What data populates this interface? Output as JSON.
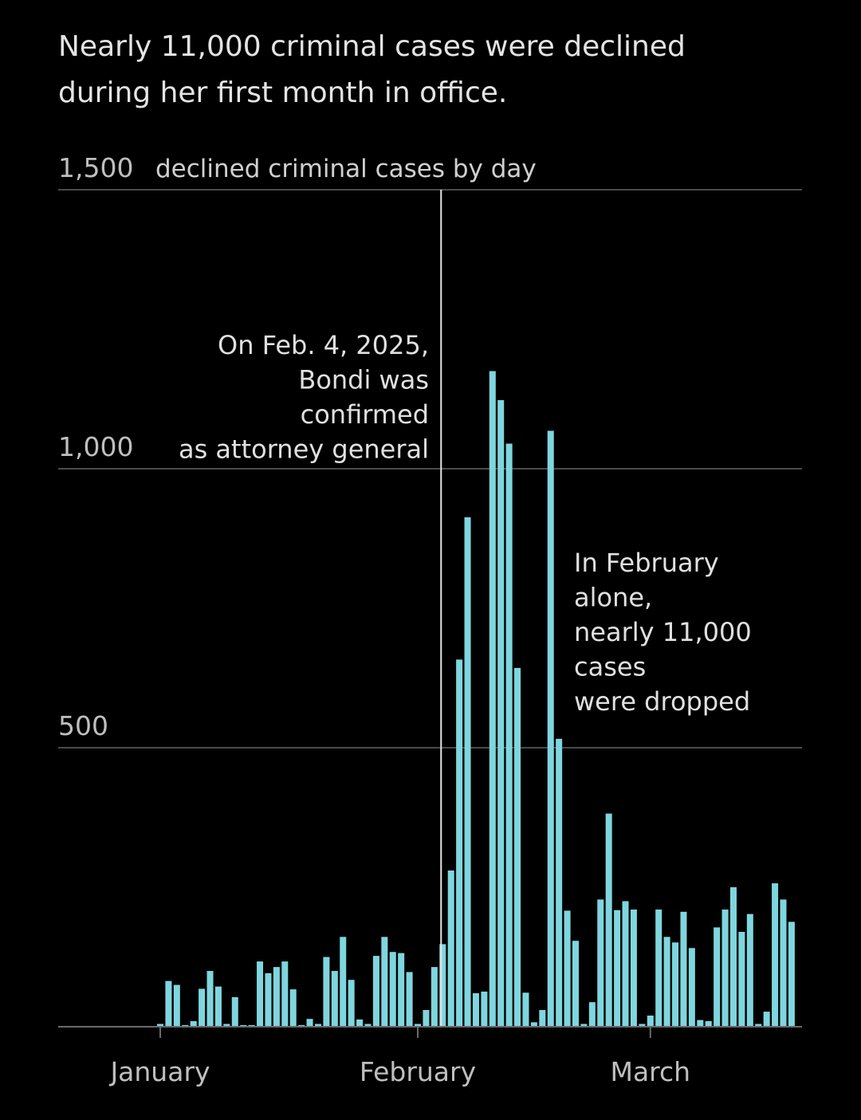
{
  "headline": "Nearly 11,000 criminal cases were declined during her first month in office.",
  "colors": {
    "bar": "#7fd6de",
    "grid": "#4a4a4a",
    "background": "#000000",
    "marker": "#e6e6e6"
  },
  "chart_data": {
    "type": "bar",
    "ylabel": "declined criminal cases by day",
    "ylim": [
      0,
      1500
    ],
    "yticks": [
      {
        "value": 500,
        "label": "500"
      },
      {
        "value": 1000,
        "label": "1,000"
      },
      {
        "value": 1500,
        "label": "1,500"
      }
    ],
    "xticks": [
      {
        "day": 1,
        "label": "January"
      },
      {
        "day": 32,
        "label": "February"
      },
      {
        "day": 60,
        "label": "March"
      }
    ],
    "values": [
      5,
      82,
      75,
      3,
      10,
      68,
      100,
      72,
      5,
      53,
      3,
      3,
      117,
      96,
      107,
      117,
      67,
      3,
      14,
      5,
      125,
      100,
      161,
      84,
      13,
      5,
      127,
      161,
      134,
      132,
      98,
      5,
      30,
      107,
      148,
      280,
      658,
      913,
      60,
      63,
      1175,
      1123,
      1045,
      643,
      61,
      8,
      30,
      1068,
      516,
      208,
      154,
      5,
      44,
      228,
      382,
      209,
      225,
      210,
      5,
      20,
      210,
      161,
      151,
      206,
      141,
      12,
      10,
      178,
      210,
      250,
      170,
      202,
      5,
      27,
      257,
      228,
      188
    ],
    "annotations": [
      {
        "id": "confirmation",
        "day": 35,
        "lines": [
          "On Feb. 4, 2025,",
          "Bondi was",
          "confirmed",
          "as attorney general"
        ]
      },
      {
        "id": "february-total",
        "lines": [
          "In February",
          "alone,",
          "nearly 11,000",
          "cases",
          "were dropped"
        ]
      }
    ]
  }
}
